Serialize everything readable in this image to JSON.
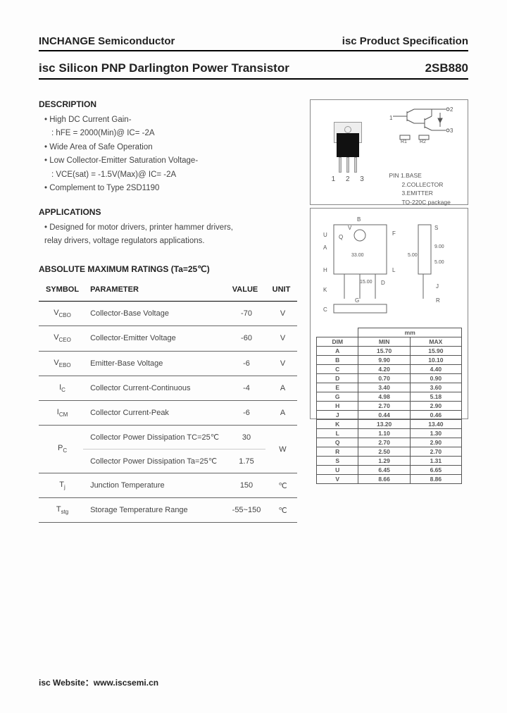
{
  "header": {
    "company": "INCHANGE Semiconductor",
    "spec": "isc Product Specification"
  },
  "title": {
    "product_type": "isc Silicon PNP Darlington Power Transistor",
    "part_number": "2SB880"
  },
  "description": {
    "heading": "DESCRIPTION",
    "items": [
      "• High DC Current Gain-",
      ": hFE = 2000(Min)@ IC= -2A",
      "• Wide Area of Safe Operation",
      "• Low Collector-Emitter Saturation Voltage-",
      ": VCE(sat) = -1.5V(Max)@ IC= -2A",
      "• Complement to Type 2SD1190"
    ]
  },
  "applications": {
    "heading": "APPLICATIONS",
    "text": "• Designed for motor drivers, printer hammer drivers, relay drivers, voltage regulators applications."
  },
  "ratings": {
    "heading": "ABSOLUTE MAXIMUM RATINGS (Ta=25℃)",
    "columns": [
      "SYMBOL",
      "PARAMETER",
      "VALUE",
      "UNIT"
    ],
    "rows": [
      {
        "sym": "V",
        "sub": "CBO",
        "param": "Collector-Base Voltage",
        "val": "-70",
        "unit": "V"
      },
      {
        "sym": "V",
        "sub": "CEO",
        "param": "Collector-Emitter Voltage",
        "val": "-60",
        "unit": "V"
      },
      {
        "sym": "V",
        "sub": "EBO",
        "param": "Emitter-Base Voltage",
        "val": "-6",
        "unit": "V"
      },
      {
        "sym": "I",
        "sub": "C",
        "param": "Collector Current-Continuous",
        "val": "-4",
        "unit": "A"
      },
      {
        "sym": "I",
        "sub": "CM",
        "param": "Collector Current-Peak",
        "val": "-6",
        "unit": "A"
      }
    ],
    "pc_row": {
      "sym": "P",
      "sub": "C",
      "param1": "Collector Power Dissipation TC=25℃",
      "val1": "30",
      "param2": "Collector Power Dissipation Ta=25℃",
      "val2": "1.75",
      "unit": "W"
    },
    "tj_row": {
      "sym": "T",
      "sub": "j",
      "param": "Junction Temperature",
      "val": "150",
      "unit": "℃"
    },
    "tstg_row": {
      "sym": "T",
      "sub": "stg",
      "param": "Storage Temperature Range",
      "val": "-55~150",
      "unit": "℃"
    }
  },
  "pinout": {
    "pins": "1 2 3",
    "labels": [
      "PIN 1.BASE",
      "2.COLLECTOR",
      "3.EMITTER",
      "TO-220C package"
    ]
  },
  "dimensions": {
    "unit_label": "mm",
    "head": [
      "DIM",
      "MIN",
      "MAX"
    ],
    "rows": [
      [
        "A",
        "15.70",
        "15.90"
      ],
      [
        "B",
        "9.90",
        "10.10"
      ],
      [
        "C",
        "4.20",
        "4.40"
      ],
      [
        "D",
        "0.70",
        "0.90"
      ],
      [
        "E",
        "3.40",
        "3.60"
      ],
      [
        "G",
        "4.98",
        "5.18"
      ],
      [
        "H",
        "2.70",
        "2.90"
      ],
      [
        "J",
        "0.44",
        "0.46"
      ],
      [
        "K",
        "13.20",
        "13.40"
      ],
      [
        "L",
        "1.10",
        "1.30"
      ],
      [
        "Q",
        "2.70",
        "2.90"
      ],
      [
        "R",
        "2.50",
        "2.70"
      ],
      [
        "S",
        "1.29",
        "1.31"
      ],
      [
        "U",
        "6.45",
        "6.65"
      ],
      [
        "V",
        "8.66",
        "8.86"
      ]
    ]
  },
  "footer": {
    "text": "isc Website：www.iscsemi.cn"
  }
}
